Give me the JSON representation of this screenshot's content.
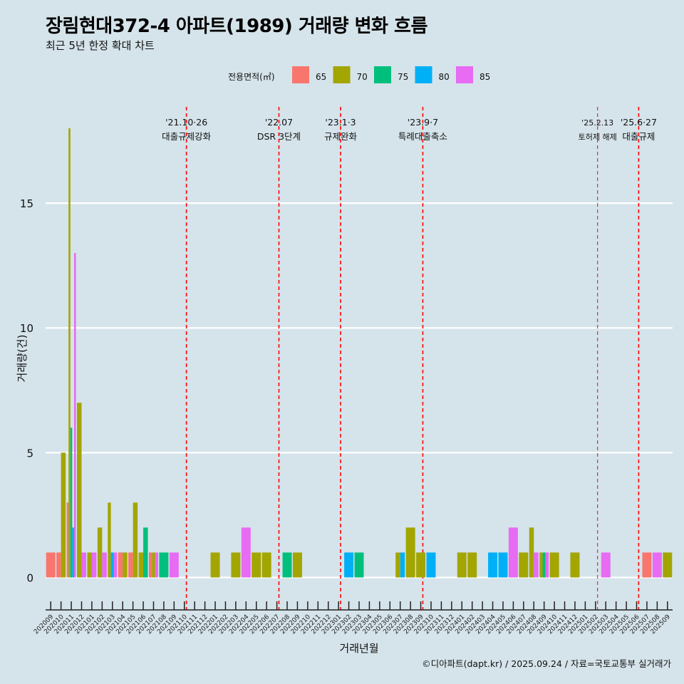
{
  "title": "장림현대372-4 아파트(1989) 거래량 변화 흐름",
  "subtitle": "최근 5년 한정 확대 차트",
  "caption": "©디아파트(dapt.kr) / 2025.09.24 / 자료=국토교통부 실거래가",
  "chart_data": {
    "type": "bar",
    "xlabel": "거래년월",
    "ylabel": "거래량(건)",
    "ylim": [
      -1.3,
      19
    ],
    "yticks": [
      0,
      5,
      10,
      15
    ],
    "legend_title": "전용면적(㎡)",
    "legend_position": "top",
    "categories": [
      "202009",
      "202010",
      "202011",
      "202012",
      "202101",
      "202102",
      "202103",
      "202104",
      "202105",
      "202106",
      "202107",
      "202108",
      "202109",
      "202110",
      "202111",
      "202112",
      "202201",
      "202202",
      "202203",
      "202204",
      "202205",
      "202206",
      "202207",
      "202208",
      "202209",
      "202210",
      "202211",
      "202212",
      "202301",
      "202302",
      "202303",
      "202304",
      "202305",
      "202306",
      "202307",
      "202308",
      "202309",
      "202310",
      "202311",
      "202312",
      "202401",
      "202402",
      "202403",
      "202404",
      "202405",
      "202406",
      "202407",
      "202408",
      "202409",
      "202410",
      "202411",
      "202412",
      "202501",
      "202502",
      "202503",
      "202504",
      "202505",
      "202506",
      "202507",
      "202508",
      "202509"
    ],
    "series": [
      {
        "name": "65",
        "color": "#F8766D",
        "values": [
          1,
          1,
          3,
          0,
          0,
          0,
          0,
          1,
          1,
          0,
          1,
          0,
          0,
          0,
          0,
          0,
          0,
          0,
          0,
          0,
          0,
          0,
          0,
          0,
          0,
          0,
          0,
          0,
          0,
          0,
          0,
          0,
          0,
          0,
          0,
          0,
          0,
          0,
          0,
          0,
          0,
          0,
          0,
          0,
          0,
          0,
          0,
          0,
          0,
          0,
          0,
          0,
          0,
          0,
          0,
          0,
          0,
          0,
          1,
          0,
          0
        ]
      },
      {
        "name": "70",
        "color": "#A3A500",
        "values": [
          0,
          5,
          18,
          7,
          1,
          2,
          3,
          1,
          3,
          1,
          1,
          0,
          0,
          0,
          0,
          0,
          1,
          0,
          1,
          0,
          1,
          1,
          0,
          0,
          1,
          0,
          0,
          0,
          0,
          0,
          0,
          0,
          0,
          0,
          1,
          2,
          1,
          0,
          0,
          0,
          1,
          1,
          0,
          0,
          0,
          0,
          1,
          2,
          1,
          1,
          0,
          1,
          0,
          0,
          0,
          0,
          0,
          0,
          0,
          0,
          1
        ]
      },
      {
        "name": "75",
        "color": "#00BF7D",
        "values": [
          0,
          0,
          6,
          0,
          0,
          0,
          0,
          0,
          0,
          2,
          0,
          1,
          0,
          0,
          0,
          0,
          0,
          0,
          0,
          0,
          0,
          0,
          0,
          1,
          0,
          0,
          0,
          0,
          0,
          0,
          1,
          0,
          0,
          0,
          0,
          0,
          0,
          0,
          0,
          0,
          0,
          0,
          0,
          0,
          0,
          0,
          0,
          0,
          1,
          0,
          0,
          0,
          0,
          0,
          0,
          0,
          0,
          0,
          0,
          0,
          0
        ]
      },
      {
        "name": "80",
        "color": "#00B0F6",
        "values": [
          0,
          0,
          2,
          0,
          0,
          0,
          1,
          0,
          0,
          0,
          0,
          0,
          0,
          0,
          0,
          0,
          0,
          0,
          0,
          0,
          0,
          0,
          0,
          0,
          0,
          0,
          0,
          0,
          0,
          1,
          0,
          0,
          0,
          0,
          1,
          0,
          0,
          1,
          0,
          0,
          0,
          0,
          0,
          1,
          1,
          0,
          0,
          0,
          0,
          0,
          0,
          0,
          0,
          0,
          0,
          0,
          0,
          0,
          0,
          0,
          0
        ]
      },
      {
        "name": "85",
        "color": "#E76BF3",
        "values": [
          0,
          0,
          13,
          1,
          1,
          1,
          1,
          0,
          0,
          0,
          1,
          0,
          1,
          0,
          0,
          0,
          0,
          0,
          0,
          2,
          0,
          0,
          0,
          0,
          0,
          0,
          0,
          0,
          0,
          0,
          0,
          0,
          0,
          0,
          0,
          0,
          0,
          0,
          0,
          0,
          0,
          0,
          0,
          0,
          0,
          2,
          0,
          1,
          1,
          0,
          0,
          0,
          0,
          0,
          1,
          0,
          0,
          0,
          0,
          1,
          0
        ]
      }
    ],
    "events": [
      {
        "date": "'21.10·26",
        "label": "대출규제강화",
        "position": 13.2
      },
      {
        "date": "'22.07",
        "label": "DSR 3단계",
        "position": 22.2
      },
      {
        "date": "'23.1·3",
        "label": "규제완화",
        "position": 28.2
      },
      {
        "date": "'23.9·7",
        "label": "특례대출축소",
        "position": 36.2
      },
      {
        "date": "'25.2.13",
        "label": "토허제 해제",
        "position": 53.2
      },
      {
        "date": "'25.6·27",
        "label": "대출규제",
        "position": 57.2
      }
    ]
  }
}
